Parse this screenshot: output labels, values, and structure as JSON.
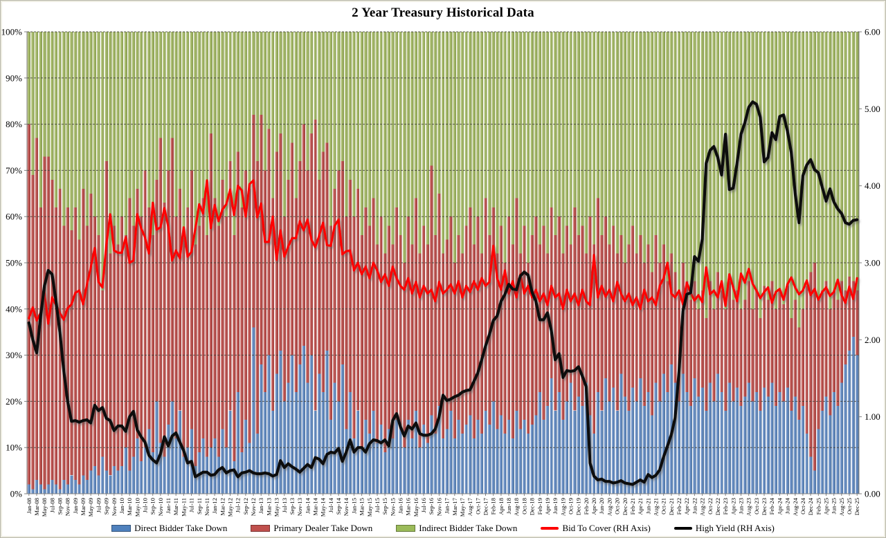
{
  "chart": {
    "title": "2 Year Treasury Historical Data",
    "legend": [
      {
        "label": "Direct Bidder Take Down",
        "type": "bar",
        "color": "#4F81BD"
      },
      {
        "label": "Primary Dealer Take Down",
        "type": "bar",
        "color": "#C0504D"
      },
      {
        "label": "Indirect Bidder Take Down",
        "type": "bar",
        "color": "#9BBB59"
      },
      {
        "label": "Bid To Cover (RH Axis)",
        "type": "line",
        "color": "#FE0000"
      },
      {
        "label": "High Yield (RH Axis)",
        "type": "line",
        "color": "#000000"
      }
    ]
  },
  "chart_data": {
    "type": "combo-stacked-bar-line",
    "title": "2 Year Treasury Historical Data",
    "grid": true,
    "legend_position": "bottom",
    "left_axis": {
      "label": "",
      "min": 0,
      "max": 100,
      "ticks": [
        "0%",
        "10%",
        "20%",
        "30%",
        "40%",
        "50%",
        "60%",
        "70%",
        "80%",
        "90%",
        "100%"
      ]
    },
    "right_axis": {
      "label": "",
      "min": 0,
      "max": 6,
      "ticks": [
        "0.00",
        "1.00",
        "2.00",
        "3.00",
        "4.00",
        "5.00",
        "6.00"
      ]
    },
    "x_tick_labels": [
      "Jan-08",
      "Mar-08",
      "May-08",
      "Jul-08",
      "Sep-08",
      "Nov-08",
      "Jan-09",
      "Mar-09",
      "May-09",
      "Jul-09",
      "Sep-09",
      "Nov-09",
      "Jan-10",
      "Mar-10",
      "May-10",
      "Jul-10",
      "Sep-10",
      "Nov-10",
      "Jan-11",
      "Mar-11",
      "May-11",
      "Jul-11",
      "Sep-11",
      "Nov-11",
      "Jan-12",
      "Mar-12",
      "May-12",
      "Jul-12",
      "Sep-12",
      "Nov-12",
      "Jan-13",
      "Mar-13",
      "May-13",
      "Jul-13",
      "Sep-13",
      "Nov-13",
      "Jan-14",
      "Mar-14",
      "May-14",
      "Jul-14",
      "Sep-14",
      "Nov-14",
      "Jan-15",
      "Mar-15",
      "May-15",
      "Jul-15",
      "Sep-15",
      "Nov-15",
      "Jan-16",
      "Mar-16",
      "May-16",
      "Jul-16",
      "Sep-16",
      "Nov-16",
      "Jan-17",
      "Mar-17",
      "May-17",
      "Aug-17",
      "Oct-17",
      "Dec-17",
      "Feb-18",
      "Apr-18",
      "Jun-18",
      "Aug-18",
      "Oct-18",
      "Dec-18",
      "Feb-19",
      "Apr-19",
      "Jun-19",
      "Aug-19",
      "Oct-19",
      "Dec-19",
      "Feb-20",
      "Apr-20",
      "Jun-20",
      "Aug-20",
      "Oct-20",
      "Dec-20",
      "Feb-21",
      "Apr-21",
      "Jun-21",
      "Aug-21",
      "Oct-21",
      "Dec-21",
      "Feb-22",
      "Apr-22",
      "Jun-22",
      "Aug-22",
      "Oct-22",
      "Dec-22",
      "Feb-23",
      "Apr-23",
      "Jun-23",
      "Aug-23",
      "Oct-23",
      "Dec-23",
      "Feb-24",
      "Apr-24",
      "Jun-24",
      "Aug-24",
      "Oct-24",
      "Dec-24",
      "Feb-25",
      "Apr-25",
      "Jun-25",
      "Aug-25",
      "Oct-25",
      "Dec-25"
    ],
    "bars_per_tick": 2,
    "series": [
      {
        "name": "Direct Bidder Take Down",
        "type": "bar",
        "stacked": true,
        "axis": "left",
        "color": "#4F81BD",
        "values": [
          2,
          1,
          3,
          2,
          1,
          2,
          3,
          2,
          1,
          3,
          2,
          4,
          3,
          2,
          4,
          3,
          5,
          6,
          4,
          8,
          5,
          4,
          6,
          5,
          6,
          10,
          5,
          8,
          12,
          7,
          10,
          14,
          9,
          20,
          11,
          8,
          15,
          20,
          12,
          18,
          8,
          10,
          14,
          6,
          9,
          12,
          8,
          10,
          12,
          8,
          14,
          10,
          18,
          7,
          22,
          9,
          16,
          11,
          36,
          13,
          28,
          22,
          30,
          18,
          26,
          31,
          20,
          24,
          30,
          22,
          28,
          32,
          24,
          30,
          18,
          26,
          22,
          31,
          16,
          24,
          20,
          28,
          14,
          22,
          12,
          18,
          10,
          16,
          13,
          18,
          11,
          15,
          9,
          14,
          12,
          16,
          14,
          10,
          16,
          12,
          18,
          10,
          15,
          11,
          17,
          13,
          19,
          12,
          14,
          18,
          12,
          16,
          13,
          15,
          17,
          12,
          16,
          13,
          18,
          15,
          20,
          14,
          17,
          13,
          16,
          12,
          18,
          14,
          16,
          13,
          15,
          17,
          22,
          16,
          19,
          25,
          18,
          22,
          16,
          20,
          24,
          18,
          21,
          19,
          24,
          17,
          13,
          22,
          18,
          25,
          20,
          23,
          18,
          26,
          21,
          18,
          23,
          20,
          25,
          19,
          22,
          17,
          24,
          20,
          26,
          22,
          28,
          24,
          20,
          26,
          22,
          19,
          25,
          21,
          23,
          18,
          24,
          20,
          26,
          22,
          18,
          24,
          20,
          23,
          19,
          21,
          24,
          20,
          22,
          18,
          23,
          21,
          24,
          19,
          22,
          20,
          23,
          18,
          21,
          16,
          19,
          13,
          8,
          5,
          14,
          18,
          21,
          17,
          22,
          19,
          24,
          28,
          31,
          34,
          30
        ]
      },
      {
        "name": "Primary Dealer Take Down",
        "type": "bar",
        "stacked": true,
        "axis": "left",
        "color": "#C0504D",
        "values": [
          78,
          68,
          74,
          60,
          72,
          71,
          65,
          60,
          65,
          55,
          60,
          53,
          59,
          53,
          62,
          55,
          60,
          54,
          52,
          36,
          67,
          48,
          52,
          49,
          54,
          46,
          59,
          50,
          54,
          53,
          60,
          48,
          47,
          48,
          66,
          55,
          55,
          57,
          48,
          48,
          48,
          52,
          56,
          48,
          49,
          52,
          48,
          68,
          52,
          50,
          54,
          50,
          54,
          49,
          52,
          53,
          54,
          55,
          46,
          59,
          54,
          48,
          49,
          46,
          48,
          47,
          40,
          44,
          46,
          42,
          44,
          48,
          46,
          48,
          63,
          42,
          52,
          45,
          42,
          42,
          50,
          44,
          46,
          46,
          48,
          48,
          46,
          46,
          45,
          46,
          43,
          45,
          43,
          44,
          42,
          46,
          42,
          40,
          44,
          42,
          46,
          42,
          43,
          43,
          54,
          43,
          46,
          40,
          41,
          42,
          38,
          40,
          39,
          43,
          45,
          42,
          44,
          39,
          46,
          41,
          42,
          38,
          41,
          37,
          44,
          42,
          46,
          38,
          42,
          37,
          41,
          43,
          32,
          42,
          33,
          37,
          38,
          38,
          36,
          38,
          30,
          44,
          35,
          39,
          28,
          43,
          41,
          42,
          38,
          35,
          34,
          35,
          34,
          30,
          29,
          36,
          35,
          32,
          31,
          31,
          32,
          31,
          32,
          30,
          28,
          24,
          24,
          24,
          24,
          24,
          24,
          23,
          21,
          19,
          21,
          20,
          22,
          20,
          22,
          22,
          22,
          22,
          22,
          21,
          21,
          21,
          22,
          20,
          22,
          20,
          22,
          21,
          22,
          21,
          22,
          21,
          22,
          20,
          21,
          20,
          21,
          32,
          40,
          45,
          28,
          26,
          25,
          23,
          22,
          23,
          22,
          16,
          16,
          12,
          14
        ]
      },
      {
        "name": "Indirect Bidder Take Down",
        "type": "bar",
        "stacked": true,
        "axis": "left",
        "color": "#9BBB59",
        "values": [
          20,
          31,
          23,
          38,
          27,
          27,
          32,
          38,
          34,
          42,
          38,
          43,
          38,
          45,
          34,
          42,
          35,
          40,
          44,
          56,
          28,
          48,
          42,
          46,
          40,
          44,
          36,
          42,
          34,
          40,
          30,
          38,
          44,
          32,
          23,
          37,
          30,
          23,
          40,
          34,
          44,
          38,
          30,
          46,
          42,
          36,
          44,
          22,
          36,
          42,
          32,
          40,
          28,
          44,
          26,
          38,
          30,
          34,
          18,
          28,
          18,
          30,
          21,
          36,
          26,
          22,
          40,
          32,
          24,
          36,
          28,
          20,
          30,
          22,
          19,
          32,
          26,
          24,
          42,
          34,
          30,
          28,
          40,
          32,
          40,
          34,
          44,
          38,
          42,
          36,
          46,
          40,
          48,
          42,
          46,
          38,
          44,
          50,
          40,
          46,
          36,
          48,
          42,
          46,
          29,
          44,
          35,
          48,
          45,
          40,
          50,
          44,
          48,
          42,
          38,
          46,
          40,
          48,
          36,
          44,
          38,
          48,
          42,
          50,
          40,
          46,
          36,
          48,
          42,
          50,
          44,
          40,
          46,
          42,
          48,
          38,
          44,
          40,
          48,
          42,
          46,
          38,
          44,
          42,
          48,
          40,
          46,
          36,
          44,
          40,
          46,
          42,
          48,
          44,
          50,
          46,
          42,
          48,
          44,
          50,
          46,
          52,
          44,
          50,
          46,
          54,
          48,
          52,
          56,
          50,
          54,
          58,
          54,
          60,
          56,
          62,
          54,
          60,
          52,
          56,
          60,
          54,
          58,
          56,
          60,
          58,
          54,
          60,
          56,
          62,
          55,
          58,
          54,
          60,
          56,
          59,
          55,
          62,
          58,
          64,
          60,
          55,
          52,
          50,
          58,
          56,
          54,
          60,
          56,
          58,
          54,
          56,
          53,
          54,
          56
        ]
      },
      {
        "name": "Bid To Cover (RH Axis)",
        "type": "line",
        "axis": "right",
        "color": "#FE0000",
        "values": [
          2.28,
          2.42,
          2.25,
          2.35,
          2.61,
          2.21,
          2.55,
          2.45,
          2.35,
          2.26,
          2.41,
          2.46,
          2.61,
          2.64,
          2.46,
          2.72,
          2.94,
          3.19,
          2.75,
          2.68,
          3.23,
          3.63,
          3.16,
          3.13,
          3.13,
          3.33,
          3.0,
          3.03,
          3.63,
          3.45,
          3.33,
          3.12,
          3.78,
          3.43,
          3.46,
          3.71,
          3.47,
          3.03,
          3.16,
          3.06,
          3.46,
          3.08,
          3.14,
          3.44,
          3.76,
          3.64,
          4.07,
          3.45,
          3.75,
          3.54,
          3.69,
          3.76,
          3.95,
          3.62,
          4.0,
          3.94,
          3.6,
          4.02,
          4.07,
          3.59,
          3.77,
          3.27,
          3.27,
          3.6,
          3.04,
          3.42,
          3.08,
          3.21,
          3.32,
          3.32,
          3.54,
          3.42,
          3.56,
          3.3,
          3.2,
          3.35,
          3.52,
          3.23,
          3.22,
          3.48,
          3.56,
          3.11,
          3.15,
          3.16,
          2.9,
          3.0,
          2.85,
          2.95,
          2.8,
          3.0,
          2.9,
          2.75,
          2.85,
          2.7,
          2.95,
          2.8,
          2.7,
          2.65,
          2.8,
          2.6,
          2.75,
          2.55,
          2.7,
          2.6,
          2.65,
          2.5,
          2.75,
          2.6,
          2.65,
          2.72,
          2.6,
          2.76,
          2.55,
          2.7,
          2.62,
          2.76,
          2.65,
          2.8,
          2.7,
          2.75,
          3.22,
          2.8,
          2.65,
          2.9,
          2.6,
          2.76,
          2.55,
          2.85,
          2.6,
          2.7,
          2.55,
          2.65,
          2.5,
          2.6,
          2.45,
          2.7,
          2.55,
          2.6,
          2.4,
          2.65,
          2.5,
          2.6,
          2.45,
          2.65,
          2.5,
          2.45,
          3.1,
          2.55,
          2.7,
          2.56,
          2.65,
          2.5,
          2.75,
          2.6,
          2.5,
          2.6,
          2.45,
          2.55,
          2.4,
          2.65,
          2.5,
          2.55,
          2.45,
          2.7,
          2.8,
          3.0,
          2.6,
          2.55,
          2.64,
          2.46,
          2.74,
          2.61,
          2.51,
          2.58,
          2.49,
          2.94,
          2.59,
          2.64,
          2.55,
          2.76,
          2.44,
          2.85,
          2.68,
          2.5,
          2.86,
          2.74,
          2.92,
          2.73,
          2.64,
          2.54,
          2.62,
          2.68,
          2.48,
          2.62,
          2.66,
          2.52,
          2.72,
          2.81,
          2.68,
          2.59,
          2.64,
          2.77,
          2.58,
          2.66,
          2.52,
          2.62,
          2.68,
          2.57,
          2.62,
          2.78,
          2.58,
          2.48,
          2.69,
          2.53,
          2.8
        ]
      },
      {
        "name": "High Yield (RH Axis)",
        "type": "line",
        "axis": "right",
        "color": "#000000",
        "values": [
          2.22,
          2.0,
          1.83,
          2.3,
          2.7,
          2.9,
          2.85,
          2.5,
          2.1,
          1.6,
          1.2,
          0.94,
          0.95,
          0.93,
          0.95,
          0.96,
          0.92,
          1.15,
          1.08,
          1.12,
          0.98,
          0.95,
          0.82,
          0.88,
          0.88,
          0.81,
          1.0,
          1.07,
          0.83,
          0.74,
          0.67,
          0.5,
          0.44,
          0.4,
          0.52,
          0.74,
          0.62,
          0.75,
          0.79,
          0.67,
          0.56,
          0.4,
          0.42,
          0.22,
          0.25,
          0.28,
          0.28,
          0.24,
          0.25,
          0.31,
          0.34,
          0.27,
          0.3,
          0.31,
          0.22,
          0.27,
          0.28,
          0.3,
          0.27,
          0.26,
          0.26,
          0.27,
          0.26,
          0.23,
          0.25,
          0.43,
          0.34,
          0.39,
          0.35,
          0.32,
          0.28,
          0.33,
          0.38,
          0.34,
          0.47,
          0.45,
          0.39,
          0.51,
          0.54,
          0.53,
          0.59,
          0.42,
          0.54,
          0.7,
          0.54,
          0.6,
          0.6,
          0.54,
          0.65,
          0.7,
          0.69,
          0.66,
          0.7,
          0.62,
          0.95,
          1.04,
          0.87,
          0.75,
          0.88,
          0.84,
          0.92,
          0.78,
          0.76,
          0.76,
          0.78,
          0.84,
          1.0,
          1.28,
          1.21,
          1.23,
          1.26,
          1.28,
          1.32,
          1.34,
          1.35,
          1.46,
          1.57,
          1.74,
          1.92,
          2.07,
          2.25,
          2.31,
          2.5,
          2.59,
          2.72,
          2.66,
          2.65,
          2.83,
          2.88,
          2.84,
          2.62,
          2.5,
          2.26,
          2.26,
          2.35,
          2.12,
          1.74,
          1.82,
          1.51,
          1.6,
          1.59,
          1.6,
          1.65,
          1.53,
          1.39,
          0.4,
          0.23,
          0.18,
          0.19,
          0.16,
          0.16,
          0.14,
          0.15,
          0.17,
          0.14,
          0.13,
          0.12,
          0.15,
          0.18,
          0.15,
          0.25,
          0.21,
          0.24,
          0.31,
          0.48,
          0.62,
          0.77,
          0.99,
          1.59,
          2.37,
          2.59,
          2.61,
          3.08,
          3.02,
          3.31,
          4.29,
          4.46,
          4.51,
          4.37,
          4.14,
          4.67,
          3.95,
          3.97,
          4.3,
          4.67,
          4.82,
          5.02,
          5.09,
          5.06,
          4.89,
          4.31,
          4.37,
          4.69,
          4.6,
          4.9,
          4.92,
          4.71,
          4.43,
          3.9,
          3.52,
          4.13,
          4.27,
          4.34,
          4.21,
          4.17,
          3.98,
          3.8,
          3.96,
          3.79,
          3.7,
          3.64,
          3.52,
          3.5,
          3.55,
          3.56
        ]
      }
    ]
  }
}
